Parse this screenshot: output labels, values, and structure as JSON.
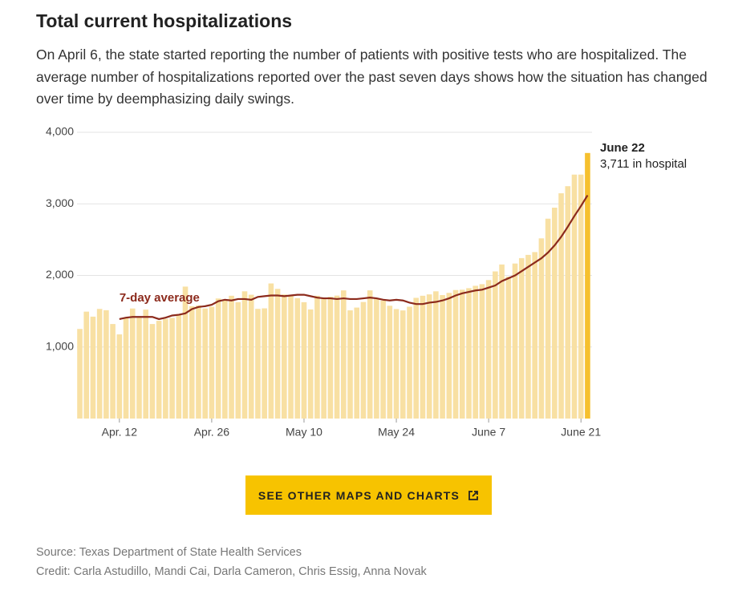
{
  "header": {
    "title": "Total current hospitalizations",
    "subtitle": "On April 6, the state started reporting the number of patients with positive tests who are hospitalized. The average number of hospitalizations reported over the past seven days shows how the situation has changed over time by deemphasizing daily swings."
  },
  "chart_data": {
    "type": "bar",
    "categories": [
      null,
      null,
      null,
      null,
      null,
      null,
      "Apr. 12",
      null,
      null,
      null,
      null,
      null,
      null,
      null,
      null,
      null,
      null,
      null,
      null,
      null,
      "Apr. 26",
      null,
      null,
      null,
      null,
      null,
      null,
      null,
      null,
      null,
      null,
      null,
      null,
      null,
      "May 10",
      null,
      null,
      null,
      null,
      null,
      null,
      null,
      null,
      null,
      null,
      null,
      null,
      null,
      "May 24",
      null,
      null,
      null,
      null,
      null,
      null,
      null,
      null,
      null,
      null,
      null,
      null,
      null,
      "June 7",
      null,
      null,
      null,
      null,
      null,
      null,
      null,
      null,
      null,
      null,
      null,
      null,
      null,
      "June 21",
      null
    ],
    "values": [
      1252,
      1494,
      1424,
      1532,
      1514,
      1321,
      1176,
      1409,
      1538,
      1411,
      1522,
      1321,
      1366,
      1392,
      1407,
      1459,
      1844,
      1569,
      1580,
      1538,
      1563,
      1678,
      1665,
      1716,
      1626,
      1778,
      1730,
      1533,
      1540,
      1888,
      1812,
      1734,
      1721,
      1682,
      1626,
      1525,
      1716,
      1676,
      1702,
      1718,
      1791,
      1512,
      1551,
      1629,
      1791,
      1683,
      1648,
      1576,
      1530,
      1511,
      1563,
      1687,
      1716,
      1735,
      1778,
      1725,
      1756,
      1796,
      1800,
      1822,
      1855,
      1878,
      1935,
      2056,
      2153,
      1983,
      2166,
      2242,
      2287,
      2326,
      2518,
      2793,
      2947,
      3148,
      3247,
      3409,
      3409,
      3711
    ],
    "color": "#f8e0a3",
    "highlight_color": "#f6c02e",
    "line": {
      "label": "7-day average",
      "color": "#8c2a1c",
      "values": [
        null,
        null,
        null,
        null,
        null,
        null,
        1390,
        1410,
        1420,
        1420,
        1420,
        1420,
        1390,
        1410,
        1440,
        1450,
        1470,
        1530,
        1560,
        1570,
        1590,
        1640,
        1660,
        1650,
        1670,
        1670,
        1660,
        1700,
        1710,
        1720,
        1720,
        1710,
        1720,
        1730,
        1730,
        1710,
        1690,
        1680,
        1680,
        1670,
        1680,
        1670,
        1670,
        1680,
        1690,
        1680,
        1660,
        1650,
        1660,
        1650,
        1620,
        1600,
        1600,
        1620,
        1630,
        1650,
        1680,
        1720,
        1750,
        1770,
        1790,
        1800,
        1830,
        1860,
        1920,
        1960,
        2000,
        2060,
        2120,
        2180,
        2240,
        2320,
        2420,
        2540,
        2680,
        2830,
        2970,
        3120
      ]
    },
    "annotation": {
      "title": "June 22",
      "text": "3,711 in hospital"
    },
    "ylim": [
      0,
      4000
    ],
    "yticks": [
      {
        "value": 1000,
        "label": "1,000"
      },
      {
        "value": 2000,
        "label": "2,000"
      },
      {
        "value": 3000,
        "label": "3,000"
      },
      {
        "value": 4000,
        "label": "4,000"
      }
    ],
    "grid": true
  },
  "button": {
    "label": "SEE OTHER MAPS AND CHARTS"
  },
  "footer": {
    "source": "Source: Texas Department of State Health Services",
    "credit": "Credit: Carla Astudillo, Mandi Cai, Darla Cameron, Chris Essig, Anna Novak"
  }
}
